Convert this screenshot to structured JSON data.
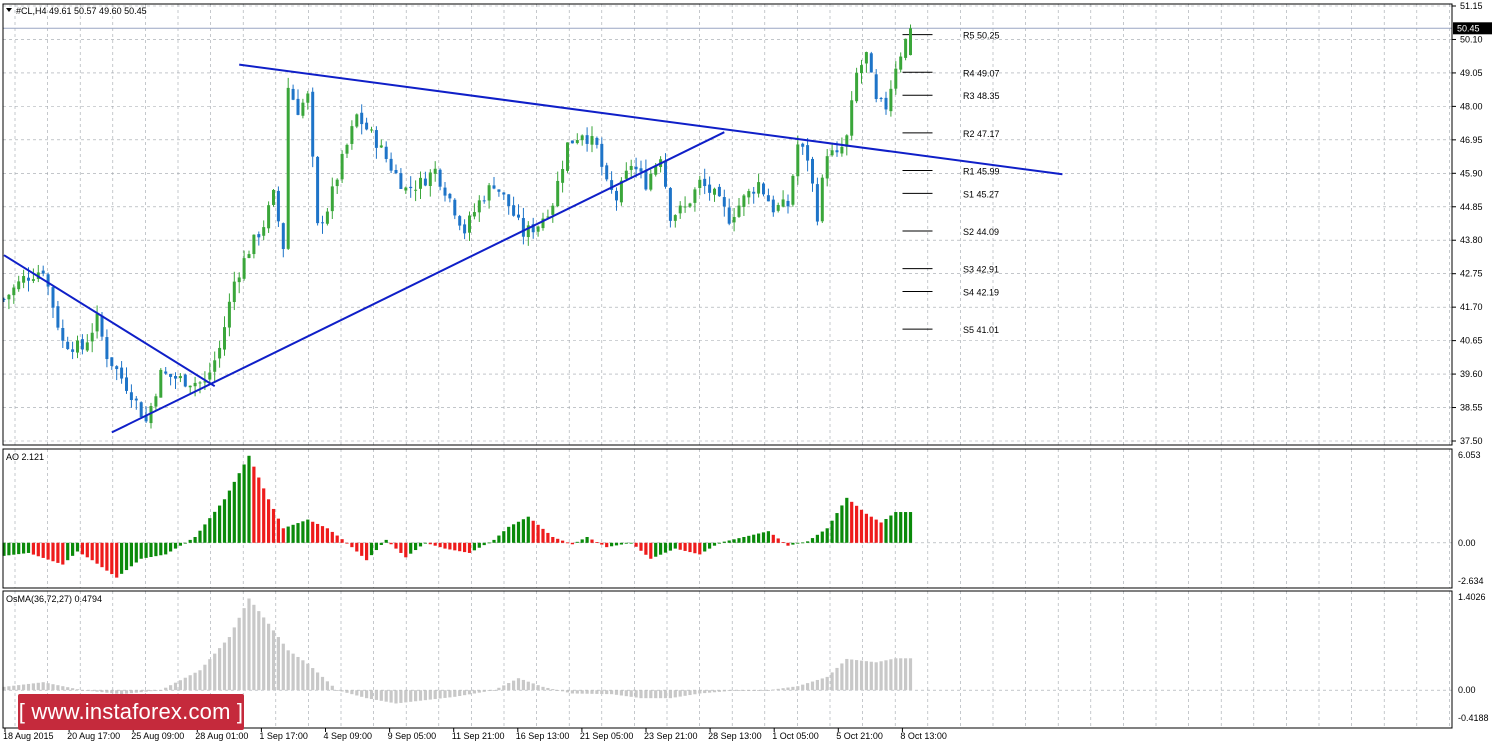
{
  "header": {
    "main_label": "#CL,H4  49.61 50.57 49.60 50.45",
    "ao_label": "AO 2.121",
    "osma_label": "OsMA(36,72,27) 0.4794"
  },
  "watermark": "[ www.instaforex.com ]",
  "colors": {
    "bull": "#3aa63a",
    "bear": "#1e74c8",
    "trendline": "#0f1fc8",
    "ao_up": "#0a8a0a",
    "ao_down": "#ee1b1b",
    "osma": "#c8c8c8",
    "grid": "#9fa4ab",
    "price_line": "#9aa6c4"
  },
  "chart_data": [
    {
      "type": "candlestick",
      "symbol": "#CL,H4",
      "ohlc_last": {
        "open": 49.61,
        "high": 50.57,
        "low": 49.6,
        "close": 50.45
      },
      "current_price": "50.45",
      "ylim": [
        37.5,
        51.15
      ],
      "y_ticks": [
        "51.15",
        "50.10",
        "49.05",
        "48.00",
        "46.95",
        "45.90",
        "44.85",
        "43.80",
        "42.75",
        "41.70",
        "40.65",
        "39.60",
        "38.55",
        "37.50"
      ],
      "x_ticks": [
        "18 Aug 2015",
        "20 Aug 17:00",
        "25 Aug 09:00",
        "28 Aug 01:00",
        "1 Sep 17:00",
        "4 Sep 09:00",
        "9 Sep 05:00",
        "11 Sep 21:00",
        "16 Sep 13:00",
        "21 Sep 05:00",
        "23 Sep 21:00",
        "28 Sep 13:00",
        "1 Oct 05:00",
        "5 Oct 21:00",
        "8 Oct 13:00"
      ],
      "close_path": [
        [
          0,
          41.95
        ],
        [
          4,
          42.6
        ],
        [
          8,
          42.9
        ],
        [
          12,
          40.6
        ],
        [
          16,
          40.4
        ],
        [
          19,
          41.3
        ],
        [
          21,
          40.2
        ],
        [
          26,
          39.0
        ],
        [
          29,
          38.1
        ],
        [
          32,
          39.6
        ],
        [
          37,
          39.4
        ],
        [
          41,
          39.3
        ],
        [
          44,
          40.4
        ],
        [
          47,
          42.5
        ],
        [
          50,
          43.5
        ],
        [
          53,
          44.3
        ],
        [
          55,
          45.2
        ],
        [
          57,
          43.6
        ],
        [
          58,
          48.6
        ],
        [
          60,
          47.9
        ],
        [
          62,
          48.3
        ],
        [
          64,
          44.2
        ],
        [
          66,
          44.8
        ],
        [
          69,
          46.3
        ],
        [
          72,
          47.7
        ],
        [
          74,
          47.3
        ],
        [
          76,
          46.9
        ],
        [
          79,
          46.1
        ],
        [
          82,
          45.4
        ],
        [
          85,
          45.6
        ],
        [
          88,
          46.0
        ],
        [
          91,
          45.1
        ],
        [
          94,
          44.1
        ],
        [
          97,
          45.0
        ],
        [
          100,
          45.6
        ],
        [
          103,
          44.9
        ],
        [
          106,
          44.0
        ],
        [
          109,
          44.3
        ],
        [
          112,
          45.0
        ],
        [
          115,
          46.8
        ],
        [
          118,
          47.2
        ],
        [
          121,
          46.7
        ],
        [
          123,
          45.5
        ],
        [
          125,
          45.1
        ],
        [
          128,
          46.2
        ],
        [
          131,
          45.6
        ],
        [
          134,
          46.5
        ],
        [
          136,
          44.6
        ],
        [
          139,
          44.8
        ],
        [
          142,
          45.6
        ],
        [
          145,
          45.2
        ],
        [
          148,
          44.5
        ],
        [
          151,
          45.1
        ],
        [
          154,
          45.6
        ],
        [
          157,
          44.8
        ],
        [
          160,
          44.9
        ],
        [
          162,
          46.8
        ],
        [
          164,
          46.4
        ],
        [
          166,
          44.6
        ],
        [
          168,
          46.6
        ],
        [
          170,
          46.4
        ],
        [
          172,
          47.0
        ],
        [
          174,
          49.0
        ],
        [
          176,
          49.6
        ],
        [
          178,
          48.1
        ],
        [
          180,
          48.0
        ],
        [
          182,
          49.3
        ],
        [
          185,
          50.45
        ]
      ],
      "pivot_levels": {
        "R5": 50.25,
        "R4": 49.07,
        "R3": 48.35,
        "R2": 47.17,
        "R1": 45.99,
        "S1": 45.27,
        "S2": 44.09,
        "S3": 42.91,
        "S4": 42.19,
        "S5": 41.01
      },
      "trendlines": [
        {
          "from": [
            0,
            43.33
          ],
          "to": [
            43,
            39.22
          ]
        },
        {
          "from": [
            22,
            37.77
          ],
          "to": [
            147,
            47.19
          ]
        },
        {
          "from": [
            48,
            49.31
          ],
          "to": [
            216,
            45.87
          ]
        }
      ]
    },
    {
      "type": "bar",
      "name": "AO",
      "value_label": "AO 2.121",
      "ylim": [
        -2.634,
        6.053
      ],
      "y_ticks": [
        "6.053",
        "0.00",
        "-2.634"
      ],
      "keypoints": [
        [
          0,
          -0.9
        ],
        [
          5,
          -0.7
        ],
        [
          12,
          -1.5
        ],
        [
          15,
          -0.6
        ],
        [
          18,
          -1.2
        ],
        [
          23,
          -2.4
        ],
        [
          28,
          -1.1
        ],
        [
          33,
          -0.8
        ],
        [
          36,
          -0.2
        ],
        [
          39,
          0.4
        ],
        [
          45,
          3.0
        ],
        [
          50,
          6.0
        ],
        [
          54,
          3.0
        ],
        [
          57,
          1.0
        ],
        [
          62,
          1.6
        ],
        [
          66,
          1.0
        ],
        [
          70,
          0.0
        ],
        [
          74,
          -1.2
        ],
        [
          78,
          0.2
        ],
        [
          82,
          -1.0
        ],
        [
          86,
          0.0
        ],
        [
          90,
          -0.4
        ],
        [
          95,
          -0.7
        ],
        [
          100,
          0.2
        ],
        [
          103,
          1.1
        ],
        [
          107,
          1.8
        ],
        [
          112,
          0.4
        ],
        [
          116,
          -0.1
        ],
        [
          119,
          0.4
        ],
        [
          123,
          -0.3
        ],
        [
          128,
          0.0
        ],
        [
          132,
          -1.1
        ],
        [
          137,
          -0.4
        ],
        [
          142,
          -0.8
        ],
        [
          146,
          0.0
        ],
        [
          151,
          0.4
        ],
        [
          156,
          0.8
        ],
        [
          160,
          -0.2
        ],
        [
          164,
          0.1
        ],
        [
          168,
          1.0
        ],
        [
          172,
          3.1
        ],
        [
          176,
          2.0
        ],
        [
          179,
          1.4
        ],
        [
          182,
          2.121
        ]
      ]
    },
    {
      "type": "bar",
      "name": "OsMA",
      "value_label": "OsMA(36,72,27) 0.4794",
      "ylim": [
        -0.4188,
        1.4026
      ],
      "y_ticks": [
        "1.4026",
        "0.00",
        "-0.4188"
      ],
      "keypoints": [
        [
          0,
          0.05
        ],
        [
          8,
          0.12
        ],
        [
          16,
          0.0
        ],
        [
          24,
          -0.06
        ],
        [
          32,
          0.0
        ],
        [
          40,
          0.3
        ],
        [
          46,
          0.8
        ],
        [
          50,
          1.38
        ],
        [
          54,
          1.0
        ],
        [
          58,
          0.6
        ],
        [
          62,
          0.4
        ],
        [
          68,
          0.0
        ],
        [
          74,
          -0.12
        ],
        [
          80,
          -0.2
        ],
        [
          86,
          -0.15
        ],
        [
          92,
          -0.1
        ],
        [
          100,
          0.0
        ],
        [
          105,
          0.18
        ],
        [
          110,
          0.05
        ],
        [
          116,
          -0.05
        ],
        [
          124,
          -0.06
        ],
        [
          130,
          -0.12
        ],
        [
          136,
          -0.12
        ],
        [
          142,
          -0.05
        ],
        [
          150,
          0.0
        ],
        [
          156,
          0.0
        ],
        [
          162,
          0.06
        ],
        [
          168,
          0.2
        ],
        [
          172,
          0.47
        ],
        [
          178,
          0.42
        ],
        [
          182,
          0.48
        ]
      ]
    }
  ]
}
